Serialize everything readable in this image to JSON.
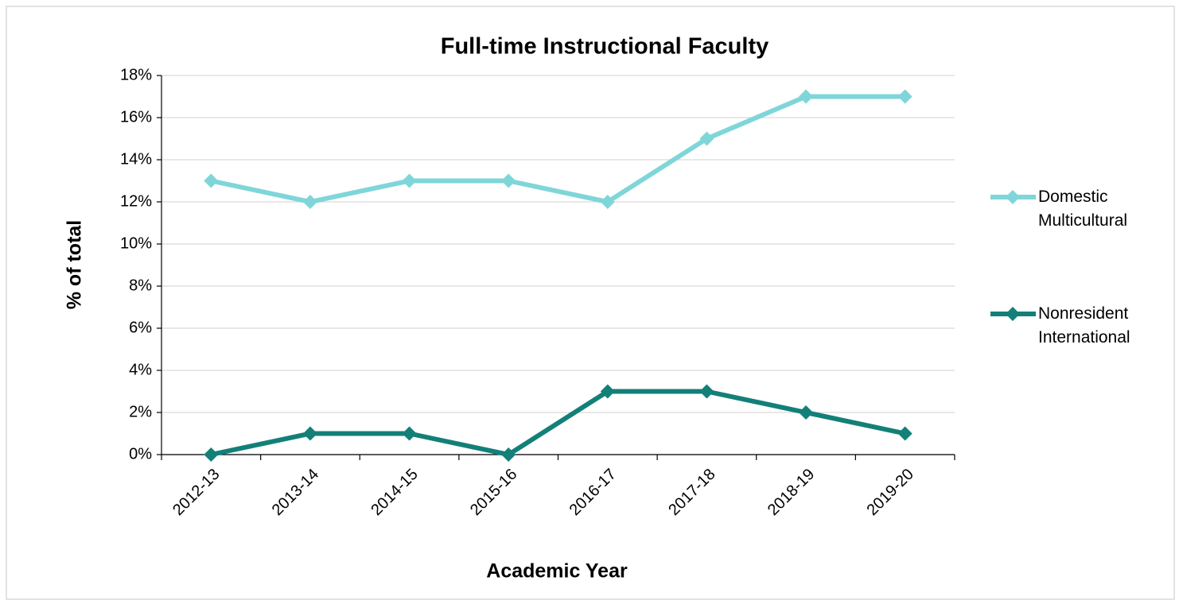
{
  "chart_data": {
    "type": "line",
    "title": "Full-time Instructional Faculty",
    "x_label": "Academic Year",
    "y_label": "% of total",
    "categories": [
      "2012-13",
      "2013-14",
      "2014-15",
      "2015-16",
      "2016-17",
      "2017-18",
      "2018-19",
      "2019-20"
    ],
    "series": [
      {
        "name": "Domestic Multicultural",
        "color": "#7fd6d9",
        "values": [
          13,
          12,
          13,
          13,
          12,
          15,
          17,
          17
        ]
      },
      {
        "name": "Nonresident International",
        "color": "#138078",
        "values": [
          0,
          1,
          1,
          0,
          3,
          3,
          2,
          1
        ]
      }
    ],
    "ylim": [
      0,
      18
    ],
    "yticks": [
      {
        "value": 0,
        "label": "0%"
      },
      {
        "value": 2,
        "label": "2%"
      },
      {
        "value": 4,
        "label": "4%"
      },
      {
        "value": 6,
        "label": "6%"
      },
      {
        "value": 8,
        "label": "8%"
      },
      {
        "value": 10,
        "label": "10%"
      },
      {
        "value": 12,
        "label": "12%"
      },
      {
        "value": 14,
        "label": "14%"
      },
      {
        "value": 16,
        "label": "16%"
      },
      {
        "value": 18,
        "label": "18%"
      }
    ],
    "grid": true,
    "legend": "right"
  }
}
